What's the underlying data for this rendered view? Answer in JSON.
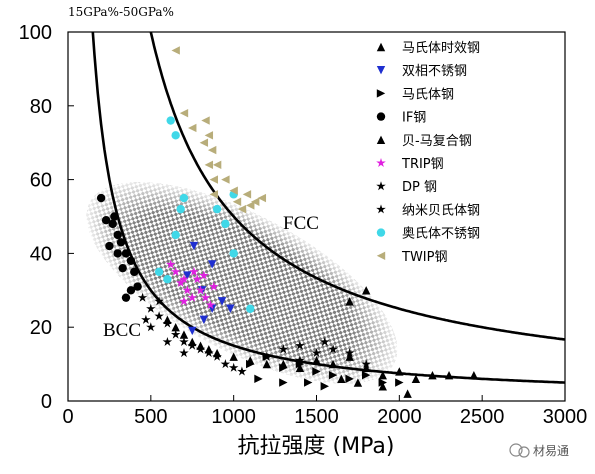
{
  "chart_data": {
    "type": "scatter",
    "corner_label": "15GPa%-50GPa%",
    "xlabel": "抗拉强度 (MPa)",
    "ylabel": "",
    "xlim": [
      0,
      3000
    ],
    "ylim": [
      0,
      100
    ],
    "xticks": [
      "0",
      "500",
      "1000",
      "1500",
      "2000",
      "2500",
      "3000"
    ],
    "yticks": [
      "0",
      "20",
      "40",
      "60",
      "80",
      "100"
    ],
    "grid": false,
    "legend_position": "top-right",
    "annotations": {
      "fcc": "FCC",
      "bcc": "BCC"
    },
    "curves": [
      {
        "product": 15000
      },
      {
        "product": 50000
      }
    ],
    "series": [
      {
        "name": "马氏体时效钢",
        "color": "#000000",
        "marker": "triangle-up",
        "points": [
          [
            1600,
            10
          ],
          [
            1700,
            12
          ],
          [
            1800,
            9
          ],
          [
            1900,
            7
          ],
          [
            2000,
            8
          ],
          [
            2100,
            6
          ],
          [
            2200,
            7
          ],
          [
            2300,
            7
          ],
          [
            1750,
            5
          ],
          [
            1900,
            4
          ],
          [
            2450,
            7
          ],
          [
            2050,
            2
          ],
          [
            1650,
            6
          ],
          [
            1800,
            30
          ],
          [
            1700,
            27
          ]
        ]
      },
      {
        "name": "双相不锈钢",
        "color": "#1f2fd0",
        "marker": "triangle-down",
        "points": [
          [
            760,
            42
          ],
          [
            720,
            34
          ],
          [
            810,
            30
          ],
          [
            870,
            25
          ],
          [
            820,
            22
          ],
          [
            750,
            19
          ],
          [
            980,
            25
          ],
          [
            930,
            27
          ],
          [
            870,
            37
          ]
        ]
      },
      {
        "name": "马氏体钢",
        "color": "#000000",
        "marker": "triangle-right",
        "points": [
          [
            1100,
            10
          ],
          [
            1200,
            12
          ],
          [
            1300,
            9
          ],
          [
            1400,
            10
          ],
          [
            1500,
            8
          ],
          [
            1600,
            7
          ],
          [
            1700,
            6
          ],
          [
            1800,
            7
          ],
          [
            1900,
            5
          ],
          [
            2000,
            5
          ],
          [
            1450,
            5
          ],
          [
            1550,
            4
          ],
          [
            1300,
            5
          ],
          [
            1150,
            6
          ]
        ]
      },
      {
        "name": "IF钢",
        "color": "#000000",
        "marker": "circle",
        "points": [
          [
            200,
            55
          ],
          [
            230,
            49
          ],
          [
            270,
            48
          ],
          [
            300,
            45
          ],
          [
            320,
            43
          ],
          [
            350,
            40
          ],
          [
            380,
            38
          ],
          [
            400,
            35
          ],
          [
            420,
            31
          ],
          [
            300,
            40
          ],
          [
            330,
            36
          ],
          [
            250,
            42
          ],
          [
            380,
            30
          ],
          [
            350,
            28
          ],
          [
            280,
            50
          ]
        ]
      },
      {
        "name": "贝-马复合钢",
        "color": "#000000",
        "marker": "triangle-up",
        "points": [
          [
            600,
            22
          ],
          [
            650,
            20
          ],
          [
            700,
            18
          ],
          [
            750,
            16
          ],
          [
            800,
            15
          ],
          [
            850,
            14
          ],
          [
            900,
            13
          ],
          [
            1000,
            12
          ],
          [
            1100,
            11
          ],
          [
            1200,
            10
          ],
          [
            1300,
            10
          ],
          [
            1400,
            9
          ],
          [
            1500,
            11
          ]
        ]
      },
      {
        "name": "TRIP钢",
        "color": "#e020e0",
        "marker": "star",
        "points": [
          [
            620,
            37
          ],
          [
            650,
            35
          ],
          [
            700,
            33
          ],
          [
            720,
            30
          ],
          [
            750,
            28
          ],
          [
            780,
            33
          ],
          [
            800,
            30
          ],
          [
            830,
            28
          ],
          [
            860,
            26
          ],
          [
            680,
            32
          ],
          [
            760,
            35
          ],
          [
            820,
            34
          ],
          [
            880,
            31
          ],
          [
            700,
            27
          ]
        ]
      },
      {
        "name": "DP 钢",
        "color": "#000000",
        "marker": "star",
        "points": [
          [
            450,
            28
          ],
          [
            500,
            25
          ],
          [
            550,
            23
          ],
          [
            600,
            21
          ],
          [
            650,
            18
          ],
          [
            700,
            16
          ],
          [
            750,
            15
          ],
          [
            800,
            14
          ],
          [
            850,
            13
          ],
          [
            900,
            12
          ],
          [
            500,
            20
          ],
          [
            600,
            16
          ],
          [
            700,
            13
          ],
          [
            950,
            10
          ],
          [
            1000,
            9
          ],
          [
            1050,
            8
          ],
          [
            550,
            27
          ],
          [
            470,
            22
          ]
        ]
      },
      {
        "name": "纳米贝氏体钢",
        "color": "#000000",
        "marker": "star",
        "points": [
          [
            1200,
            12
          ],
          [
            1300,
            14
          ],
          [
            1400,
            15
          ],
          [
            1500,
            13
          ],
          [
            1600,
            14
          ],
          [
            1700,
            13
          ],
          [
            1400,
            11
          ],
          [
            1550,
            16
          ],
          [
            1800,
            10
          ]
        ]
      },
      {
        "name": "奥氏体不锈钢",
        "color": "#40d8e8",
        "marker": "circle",
        "points": [
          [
            620,
            76
          ],
          [
            650,
            72
          ],
          [
            700,
            55
          ],
          [
            650,
            45
          ],
          [
            680,
            52
          ],
          [
            900,
            52
          ],
          [
            950,
            48
          ],
          [
            1000,
            56
          ],
          [
            550,
            35
          ],
          [
            600,
            33
          ],
          [
            1100,
            25
          ],
          [
            1000,
            40
          ]
        ]
      },
      {
        "name": "TWIP钢",
        "color": "#b8ad7a",
        "marker": "triangle-left",
        "points": [
          [
            650,
            95
          ],
          [
            700,
            78
          ],
          [
            750,
            74
          ],
          [
            830,
            76
          ],
          [
            850,
            72
          ],
          [
            870,
            68
          ],
          [
            820,
            70
          ],
          [
            850,
            64
          ],
          [
            880,
            60
          ],
          [
            880,
            56
          ],
          [
            950,
            60
          ],
          [
            1000,
            57
          ],
          [
            1050,
            52
          ],
          [
            1100,
            53
          ],
          [
            1130,
            54
          ],
          [
            1170,
            55
          ],
          [
            900,
            64
          ],
          [
            1020,
            54
          ],
          [
            1080,
            56
          ]
        ]
      }
    ]
  },
  "watermark": {
    "text": "材易通"
  },
  "colors": {
    "blob_fill": "#8a8a8a",
    "curve": "#000000"
  }
}
